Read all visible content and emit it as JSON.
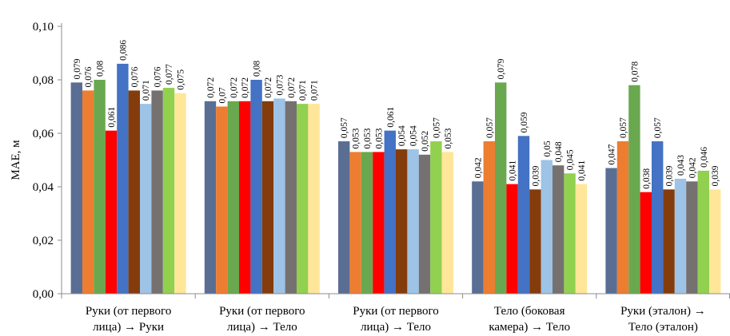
{
  "chart_data": {
    "type": "bar",
    "title": "",
    "xlabel": "",
    "ylabel": "MAE, м",
    "ylim": [
      0,
      0.1
    ],
    "yticks": [
      "0,00",
      "0,02",
      "0,04",
      "0,06",
      "0,08",
      "0,10"
    ],
    "grid": false,
    "legend": "none",
    "categories": [
      [
        "Руки (от первого",
        "лица) → Руки"
      ],
      [
        "Руки (от первого",
        "лица) → Тело"
      ],
      [
        "Руки (от первого",
        "лица) → Тело"
      ],
      [
        "Тело (боковая",
        "камера) → Тело"
      ],
      [
        "Руки (эталон) →",
        "Тело (эталон)"
      ]
    ],
    "series": [
      {
        "color": "#5a6e94",
        "values": [
          0.079,
          0.072,
          0.057,
          0.042,
          0.047
        ],
        "labels": [
          "0,079",
          "0,072",
          "0,057",
          "0,042",
          "0,047"
        ]
      },
      {
        "color": "#ed7d31",
        "values": [
          0.076,
          0.07,
          0.053,
          0.057,
          0.057
        ],
        "labels": [
          "0,076",
          "0,07",
          "0,053",
          "0,057",
          "0,057"
        ]
      },
      {
        "color": "#6aa84f",
        "values": [
          0.08,
          0.072,
          0.053,
          0.079,
          0.078
        ],
        "labels": [
          "0,08",
          "0,072",
          "0,053",
          "0,079",
          "0,078"
        ]
      },
      {
        "color": "#ff0000",
        "values": [
          0.061,
          0.072,
          0.053,
          0.041,
          0.038
        ],
        "labels": [
          "0,061",
          "0,072",
          "0,053",
          "0,041",
          "0,038"
        ]
      },
      {
        "color": "#4472c4",
        "values": [
          0.086,
          0.08,
          0.061,
          0.059,
          0.057
        ],
        "labels": [
          "0,086",
          "0,08",
          "0,061",
          "0,059",
          "0,057"
        ]
      },
      {
        "color": "#843c0c",
        "values": [
          0.076,
          0.072,
          0.054,
          0.039,
          0.039
        ],
        "labels": [
          "0,076",
          "0,072",
          "0,054",
          "0,039",
          "0,039"
        ]
      },
      {
        "color": "#9dc3e6",
        "values": [
          0.071,
          0.073,
          0.054,
          0.05,
          0.043
        ],
        "labels": [
          "0,071",
          "0,073",
          "0,054",
          "0,05",
          "0,043"
        ]
      },
      {
        "color": "#767171",
        "values": [
          0.076,
          0.072,
          0.052,
          0.048,
          0.042
        ],
        "labels": [
          "0,076",
          "0,072",
          "0,052",
          "0,048",
          "0,042"
        ]
      },
      {
        "color": "#92d050",
        "values": [
          0.077,
          0.071,
          0.057,
          0.045,
          0.046
        ],
        "labels": [
          "0,077",
          "0,071",
          "0,057",
          "0,045",
          "0,046"
        ]
      },
      {
        "color": "#ffe699",
        "values": [
          0.075,
          0.071,
          0.053,
          0.041,
          0.039
        ],
        "labels": [
          "0,075",
          "0,071",
          "0,053",
          "0,041",
          "0,039"
        ]
      }
    ]
  }
}
